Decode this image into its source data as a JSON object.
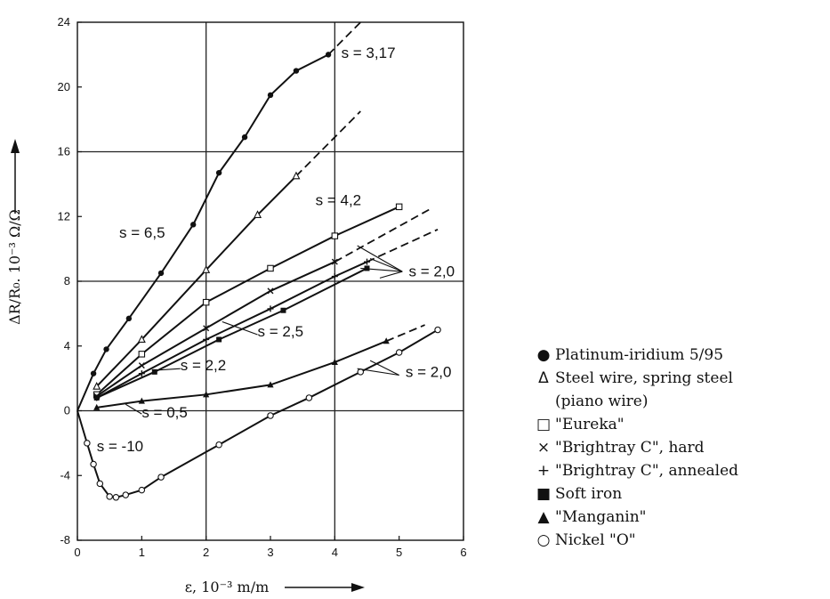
{
  "chart_data": {
    "type": "line",
    "xlabel": "ε, 10⁻³ m/m",
    "ylabel": "ΔR/R₀. 10⁻³ Ω/Ω",
    "xlim": [
      0,
      6
    ],
    "ylim": [
      -8,
      24
    ],
    "x_ticks": [
      "0",
      "1",
      "2",
      "3",
      "4",
      "5",
      "6"
    ],
    "y_ticks": [
      "-8",
      "-4",
      "0",
      "4",
      "8",
      "12",
      "16",
      "20",
      "24"
    ],
    "grid": "major lines at x = 2, 4 and y = 0, 8, 16",
    "legend_position": "right",
    "series": [
      {
        "name": "Platinum-iridium 5/95",
        "marker": "filled-circle",
        "annotations": [
          "s = 6,5",
          "s = 3,17"
        ],
        "x": [
          0,
          0.25,
          0.45,
          0.8,
          1.3,
          1.8,
          2.2,
          2.6,
          3.0,
          3.4,
          3.9
        ],
        "y": [
          0,
          2.3,
          3.8,
          5.7,
          8.5,
          11.5,
          14.7,
          16.9,
          19.5,
          21.0,
          22.0
        ],
        "dashed_extension": {
          "x": [
            3.9,
            4.4
          ],
          "y": [
            22.0,
            24.0
          ]
        }
      },
      {
        "name": "Steel wire, spring steel (piano wire)",
        "marker": "open-triangle",
        "annotations": [
          "s = 4,2"
        ],
        "x": [
          0.3,
          1.0,
          2.0,
          2.8,
          3.4
        ],
        "y": [
          1.5,
          4.4,
          8.7,
          12.1,
          14.5
        ],
        "dashed_extension": {
          "x": [
            3.4,
            4.4
          ],
          "y": [
            14.5,
            18.5
          ]
        }
      },
      {
        "name": "\"Eureka\"",
        "marker": "open-square",
        "annotations": [
          "s = 2,0"
        ],
        "x": [
          0.3,
          1.0,
          2.0,
          3.0,
          4.0,
          5.0
        ],
        "y": [
          1.0,
          3.5,
          6.7,
          8.8,
          10.8,
          12.6
        ]
      },
      {
        "name": "\"Brightray C\", hard",
        "marker": "cross",
        "annotations": [
          "s = 2,0"
        ],
        "x": [
          0.3,
          1.0,
          2.0,
          3.0,
          4.0
        ],
        "y": [
          0.9,
          2.8,
          5.1,
          7.4,
          9.2
        ],
        "dashed_extension": {
          "x": [
            4.0,
            5.5
          ],
          "y": [
            9.2,
            12.5
          ]
        }
      },
      {
        "name": "\"Brightray C\", annealed",
        "marker": "plus",
        "annotations": [
          "s = 2,0"
        ],
        "x": [
          0.3,
          1.0,
          2.0,
          3.0,
          4.0,
          4.5
        ],
        "y": [
          0.8,
          2.3,
          4.4,
          6.3,
          8.3,
          9.2
        ],
        "dashed_extension": {
          "x": [
            4.5,
            5.6
          ],
          "y": [
            9.2,
            11.2
          ]
        }
      },
      {
        "name": "Soft iron",
        "marker": "filled-square",
        "annotations": [
          "s = 2,2",
          "s = 2,5"
        ],
        "x": [
          0.3,
          1.2,
          2.2,
          3.2,
          4.5
        ],
        "y": [
          0.8,
          2.4,
          4.4,
          6.2,
          8.8
        ]
      },
      {
        "name": "\"Manganin\"",
        "marker": "filled-triangle",
        "annotations": [
          "s = 0,5"
        ],
        "x": [
          0.3,
          1.0,
          2.0,
          3.0,
          4.0,
          4.8
        ],
        "y": [
          0.2,
          0.6,
          1.0,
          1.6,
          3.0,
          4.3
        ],
        "dashed_extension": {
          "x": [
            4.8,
            5.4
          ],
          "y": [
            4.3,
            5.3
          ]
        }
      },
      {
        "name": "Nickel \"O\"",
        "marker": "open-circle",
        "annotations": [
          "s = -10",
          "s = 2,0"
        ],
        "x": [
          0,
          0.15,
          0.25,
          0.35,
          0.5,
          0.6,
          0.75,
          1.0,
          1.3,
          2.2,
          3.0,
          3.6,
          4.4,
          5.0,
          5.6
        ],
        "y": [
          0,
          -2.0,
          -3.3,
          -4.5,
          -5.3,
          -5.35,
          -5.2,
          -4.9,
          -4.1,
          -2.1,
          -0.3,
          0.8,
          2.4,
          3.6,
          5.0
        ],
        "dashed_extension": {
          "x": [],
          "y": []
        }
      }
    ],
    "annotation_labels": [
      {
        "text": "s = 3,17"
      },
      {
        "text": "s = 4,2"
      },
      {
        "text": "s = 6,5"
      },
      {
        "text": "s = 2,0"
      },
      {
        "text": "s = 2,5"
      },
      {
        "text": "s = 2,2"
      },
      {
        "text": "s = 2,0"
      },
      {
        "text": "s = 0,5"
      },
      {
        "text": "s = -10"
      }
    ]
  },
  "legend": [
    {
      "symbol": "●",
      "text": "Platinum-iridium 5/95"
    },
    {
      "symbol": "Δ",
      "text": "Steel wire, spring steel"
    },
    {
      "symbol": "",
      "text": "(piano wire)"
    },
    {
      "symbol": "□",
      "text": "\"Eureka\""
    },
    {
      "symbol": "×",
      "text": "\"Brightray C\", hard"
    },
    {
      "symbol": "+",
      "text": "\"Brightray C\", annealed"
    },
    {
      "symbol": "■",
      "text": "Soft iron"
    },
    {
      "symbol": "▲",
      "text": "\"Manganin\""
    },
    {
      "symbol": "○",
      "text": "Nickel \"O\""
    }
  ]
}
